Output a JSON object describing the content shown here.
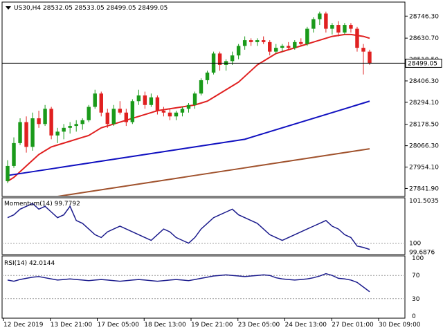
{
  "header": {
    "symbol_label": "US30,H4",
    "ohlc_label": "28532.05 28533.05 28499.05 28499.05"
  },
  "colors": {
    "bull": "#1a9a1a",
    "bear": "#e02020",
    "ma_fast": "#e02020",
    "ma_mid": "#1010c0",
    "ma_slow": "#a0522d",
    "indicator": "#1a1a8c",
    "current_price_line": "#000000"
  },
  "chart_data": [
    {
      "type": "candlestick",
      "title": "US30,H4",
      "ylim": [
        27800,
        28820
      ],
      "y_ticks": [
        "28746.30",
        "28630.70",
        "28518.50",
        "28406.30",
        "28294.10",
        "28178.50",
        "28066.30",
        "27954.10",
        "27841.90"
      ],
      "current_price": 28499.05,
      "current_price_label": "28499.05",
      "x_tick_labels": [
        "12 Dec 2019",
        "13 Dec 21:00",
        "17 Dec 05:00",
        "18 Dec 13:00",
        "19 Dec 21:00",
        "23 Dec 05:00",
        "24 Dec 13:00",
        "27 Dec 01:00",
        "30 Dec 09:00"
      ],
      "candles": [
        [
          27880,
          27990,
          27870,
          27960
        ],
        [
          27960,
          28110,
          27950,
          28080
        ],
        [
          28080,
          28210,
          28070,
          28190
        ],
        [
          28190,
          28220,
          28030,
          28060
        ],
        [
          28060,
          28240,
          28040,
          28210
        ],
        [
          28210,
          28250,
          28160,
          28180
        ],
        [
          28180,
          28280,
          28170,
          28260
        ],
        [
          28260,
          28270,
          28100,
          28120
        ],
        [
          28120,
          28160,
          28080,
          28140
        ],
        [
          28140,
          28180,
          28100,
          28160
        ],
        [
          28160,
          28190,
          28130,
          28170
        ],
        [
          28170,
          28200,
          28140,
          28180
        ],
        [
          28180,
          28210,
          28150,
          28200
        ],
        [
          28200,
          28280,
          28190,
          28270
        ],
        [
          28270,
          28360,
          28260,
          28340
        ],
        [
          28340,
          28350,
          28220,
          28240
        ],
        [
          28240,
          28260,
          28160,
          28180
        ],
        [
          28180,
          28280,
          28170,
          28260
        ],
        [
          28260,
          28300,
          28230,
          28240
        ],
        [
          28240,
          28260,
          28170,
          28190
        ],
        [
          28190,
          28310,
          28180,
          28300
        ],
        [
          28300,
          28360,
          28280,
          28330
        ],
        [
          28330,
          28350,
          28260,
          28280
        ],
        [
          28280,
          28340,
          28270,
          28320
        ],
        [
          28320,
          28330,
          28230,
          28250
        ],
        [
          28250,
          28270,
          28220,
          28240
        ],
        [
          28240,
          28260,
          28200,
          28220
        ],
        [
          28220,
          28250,
          28200,
          28240
        ],
        [
          28240,
          28270,
          28220,
          28260
        ],
        [
          28260,
          28290,
          28240,
          28280
        ],
        [
          28280,
          28350,
          28260,
          28340
        ],
        [
          28340,
          28420,
          28330,
          28410
        ],
        [
          28410,
          28460,
          28390,
          28450
        ],
        [
          28450,
          28560,
          28440,
          28550
        ],
        [
          28550,
          28560,
          28460,
          28490
        ],
        [
          28490,
          28520,
          28460,
          28510
        ],
        [
          28510,
          28560,
          28490,
          28540
        ],
        [
          28540,
          28600,
          28520,
          28590
        ],
        [
          28590,
          28640,
          28570,
          28620
        ],
        [
          28620,
          28630,
          28590,
          28610
        ],
        [
          28610,
          28630,
          28590,
          28620
        ],
        [
          28620,
          28640,
          28600,
          28610
        ],
        [
          28610,
          28620,
          28540,
          28560
        ],
        [
          28560,
          28600,
          28550,
          28580
        ],
        [
          28580,
          28600,
          28560,
          28590
        ],
        [
          28590,
          28610,
          28570,
          28580
        ],
        [
          28580,
          28620,
          28570,
          28610
        ],
        [
          28610,
          28630,
          28590,
          28600
        ],
        [
          28600,
          28690,
          28590,
          28680
        ],
        [
          28680,
          28740,
          28660,
          28730
        ],
        [
          28730,
          28770,
          28700,
          28760
        ],
        [
          28760,
          28770,
          28660,
          28680
        ],
        [
          28680,
          28710,
          28650,
          28700
        ],
        [
          28700,
          28720,
          28640,
          28660
        ],
        [
          28660,
          28710,
          28650,
          28700
        ],
        [
          28700,
          28710,
          28660,
          28680
        ],
        [
          28680,
          28690,
          28560,
          28580
        ],
        [
          28580,
          28600,
          28440,
          28560
        ],
        [
          28560,
          28570,
          28490,
          28499.05
        ]
      ],
      "ma_fast": [
        27880,
        27900,
        27930,
        27960,
        27990,
        28020,
        28040,
        28060,
        28070,
        28080,
        28090,
        28100,
        28110,
        28120,
        28140,
        28160,
        28170,
        28180,
        28190,
        28200,
        28210,
        28220,
        28230,
        28240,
        28250,
        28255,
        28260,
        28265,
        28270,
        28275,
        28280,
        28290,
        28300,
        28320,
        28340,
        28360,
        28380,
        28400,
        28430,
        28460,
        28490,
        28510,
        28530,
        28550,
        28560,
        28570,
        28580,
        28590,
        28600,
        28610,
        28620,
        28630,
        28640,
        28645,
        28650,
        28650,
        28645,
        28640,
        28630
      ],
      "ma_mid": [
        27910,
        27915,
        27920,
        27925,
        27930,
        27935,
        27940,
        27945,
        27950,
        27955,
        27960,
        27965,
        27970,
        27975,
        27980,
        27985,
        27990,
        27995,
        28000,
        28005,
        28010,
        28015,
        28020,
        28025,
        28030,
        28035,
        28040,
        28045,
        28050,
        28055,
        28060,
        28065,
        28070,
        28075,
        28080,
        28085,
        28090,
        28095,
        28100,
        28110,
        28120,
        28130,
        28140,
        28150,
        28160,
        28170,
        28180,
        28190,
        28200,
        28210,
        28220,
        28230,
        28240,
        28250,
        28260,
        28270,
        28280,
        28290,
        28300
      ],
      "ma_slow": [
        27760,
        27765,
        27770,
        27775,
        27780,
        27785,
        27790,
        27795,
        27800,
        27805,
        27810,
        27815,
        27820,
        27825,
        27830,
        27835,
        27840,
        27845,
        27850,
        27855,
        27860,
        27865,
        27870,
        27875,
        27880,
        27885,
        27890,
        27895,
        27900,
        27905,
        27910,
        27915,
        27920,
        27925,
        27930,
        27935,
        27940,
        27945,
        27950,
        27955,
        27960,
        27965,
        27970,
        27975,
        27980,
        27985,
        27990,
        27995,
        28000,
        28005,
        28010,
        28015,
        28020,
        28025,
        28030,
        28035,
        28040,
        28045,
        28050
      ]
    },
    {
      "type": "line",
      "title": "Momentum(14) 99.7792",
      "ylim": [
        99.6,
        101.6
      ],
      "y_ticks": [
        "101.5035",
        "100",
        "99.6876"
      ],
      "reference_line": 100,
      "values": [
        100.9,
        101.0,
        101.2,
        101.3,
        101.4,
        101.2,
        101.3,
        101.1,
        100.9,
        101.0,
        101.3,
        100.8,
        100.7,
        100.5,
        100.3,
        100.2,
        100.4,
        100.5,
        100.6,
        100.5,
        100.4,
        100.3,
        100.2,
        100.1,
        100.3,
        100.5,
        100.4,
        100.2,
        100.1,
        100.0,
        100.2,
        100.5,
        100.7,
        100.9,
        101.0,
        101.1,
        101.2,
        101.0,
        100.9,
        100.8,
        100.7,
        100.5,
        100.3,
        100.2,
        100.1,
        100.2,
        100.3,
        100.4,
        100.5,
        100.6,
        100.7,
        100.8,
        100.6,
        100.5,
        100.3,
        100.2,
        99.9,
        99.85,
        99.78
      ]
    },
    {
      "type": "line",
      "title": "RSI(14) 42.0144",
      "ylim": [
        0,
        100
      ],
      "y_ticks": [
        "100",
        "70",
        "30",
        "0"
      ],
      "reference_lines": [
        70,
        30
      ],
      "values": [
        62,
        60,
        63,
        65,
        67,
        68,
        66,
        64,
        62,
        63,
        64,
        63,
        62,
        61,
        62,
        63,
        62,
        61,
        60,
        61,
        62,
        63,
        62,
        61,
        60,
        61,
        62,
        63,
        62,
        61,
        63,
        65,
        67,
        69,
        70,
        71,
        70,
        69,
        68,
        69,
        70,
        71,
        70,
        66,
        64,
        63,
        62,
        63,
        64,
        66,
        69,
        73,
        70,
        65,
        64,
        62,
        58,
        50,
        42
      ]
    }
  ]
}
